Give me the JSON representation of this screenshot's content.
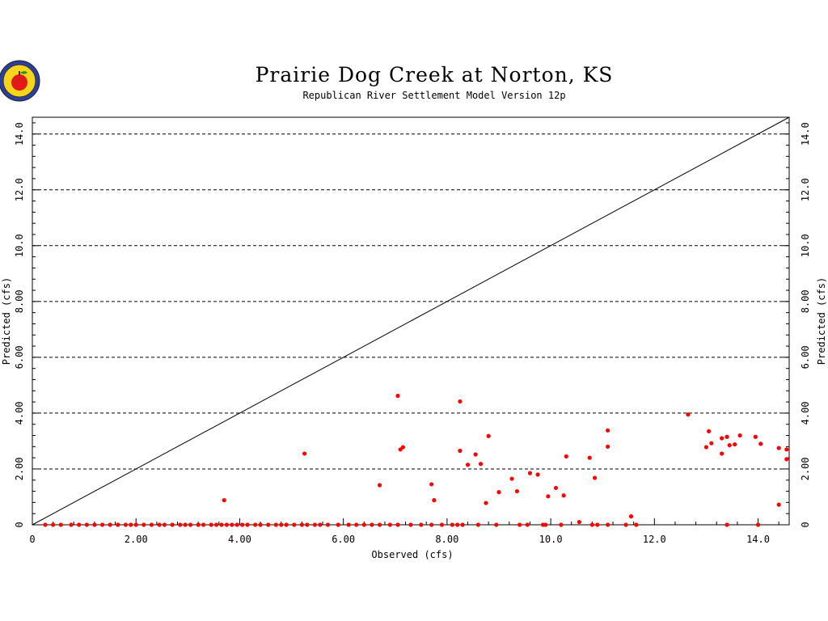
{
  "chart_data": {
    "type": "scatter",
    "title": "Prairie Dog Creek at Norton, KS",
    "subtitle": "Republican River Settlement Model Version 12p",
    "xlabel": "Observed (cfs)",
    "ylabel": "Predicted (cfs)",
    "xlim": [
      0,
      14.6
    ],
    "ylim": [
      0,
      14.6
    ],
    "x_ticks": [
      "0",
      "2.00",
      "4.00",
      "6.00",
      "8.00",
      "10.0",
      "12.0",
      "14.0"
    ],
    "y_ticks": [
      "0",
      "2.00",
      "4.00",
      "6.00",
      "8.00",
      "10.0",
      "12.0",
      "14.0"
    ],
    "grid": "horizontal-dashed",
    "reference_line": "1:1",
    "point_color": "#ff0000",
    "points": [
      [
        0.25,
        0
      ],
      [
        0.4,
        0
      ],
      [
        0.55,
        0
      ],
      [
        0.75,
        0
      ],
      [
        0.9,
        0
      ],
      [
        1.05,
        0
      ],
      [
        1.2,
        0
      ],
      [
        1.35,
        0
      ],
      [
        1.5,
        0
      ],
      [
        1.65,
        0
      ],
      [
        1.8,
        0
      ],
      [
        1.9,
        0
      ],
      [
        2.0,
        0
      ],
      [
        2.15,
        0
      ],
      [
        2.3,
        0
      ],
      [
        2.45,
        0
      ],
      [
        2.55,
        0
      ],
      [
        2.7,
        0
      ],
      [
        2.85,
        0
      ],
      [
        2.95,
        0
      ],
      [
        3.05,
        0
      ],
      [
        3.2,
        0
      ],
      [
        3.3,
        0
      ],
      [
        3.45,
        0
      ],
      [
        3.55,
        0
      ],
      [
        3.65,
        0
      ],
      [
        3.75,
        0
      ],
      [
        3.85,
        0
      ],
      [
        3.95,
        0
      ],
      [
        4.05,
        0
      ],
      [
        4.15,
        0
      ],
      [
        4.3,
        0
      ],
      [
        4.4,
        0
      ],
      [
        4.55,
        0
      ],
      [
        4.7,
        0
      ],
      [
        4.8,
        0
      ],
      [
        4.9,
        0
      ],
      [
        5.05,
        0
      ],
      [
        5.2,
        0
      ],
      [
        5.3,
        0
      ],
      [
        5.45,
        0
      ],
      [
        5.55,
        0
      ],
      [
        5.7,
        0
      ],
      [
        5.9,
        0
      ],
      [
        6.1,
        0
      ],
      [
        6.25,
        0
      ],
      [
        6.4,
        0
      ],
      [
        6.55,
        0
      ],
      [
        6.7,
        0
      ],
      [
        6.9,
        0
      ],
      [
        7.05,
        0
      ],
      [
        7.3,
        0
      ],
      [
        7.5,
        0
      ],
      [
        7.7,
        0
      ],
      [
        7.9,
        0
      ],
      [
        8.1,
        0
      ],
      [
        8.2,
        0
      ],
      [
        8.3,
        0
      ],
      [
        8.6,
        0
      ],
      [
        8.95,
        0
      ],
      [
        9.4,
        0
      ],
      [
        9.55,
        0
      ],
      [
        9.85,
        0
      ],
      [
        9.9,
        0
      ],
      [
        10.2,
        0
      ],
      [
        10.8,
        0
      ],
      [
        10.9,
        0
      ],
      [
        11.1,
        0
      ],
      [
        11.45,
        0
      ],
      [
        11.65,
        0
      ],
      [
        13.4,
        0
      ],
      [
        14.0,
        0
      ],
      [
        3.7,
        0.88
      ],
      [
        5.25,
        2.55
      ],
      [
        6.7,
        1.42
      ],
      [
        7.05,
        4.62
      ],
      [
        7.1,
        2.7
      ],
      [
        7.15,
        2.78
      ],
      [
        7.7,
        1.45
      ],
      [
        7.75,
        0.88
      ],
      [
        8.25,
        4.42
      ],
      [
        8.25,
        2.65
      ],
      [
        8.4,
        2.15
      ],
      [
        8.55,
        2.52
      ],
      [
        8.65,
        2.18
      ],
      [
        8.75,
        0.78
      ],
      [
        8.8,
        3.18
      ],
      [
        9.0,
        1.17
      ],
      [
        9.25,
        1.65
      ],
      [
        9.35,
        1.2
      ],
      [
        9.6,
        1.85
      ],
      [
        9.75,
        1.8
      ],
      [
        9.95,
        1.02
      ],
      [
        10.1,
        1.32
      ],
      [
        10.25,
        1.05
      ],
      [
        10.3,
        2.45
      ],
      [
        10.55,
        0.1
      ],
      [
        10.75,
        2.4
      ],
      [
        10.85,
        1.68
      ],
      [
        11.1,
        3.38
      ],
      [
        11.1,
        2.8
      ],
      [
        11.55,
        0.3
      ],
      [
        12.65,
        3.95
      ],
      [
        13.0,
        2.78
      ],
      [
        13.05,
        3.35
      ],
      [
        13.1,
        2.92
      ],
      [
        13.3,
        3.1
      ],
      [
        13.3,
        2.55
      ],
      [
        13.4,
        3.15
      ],
      [
        13.45,
        2.85
      ],
      [
        13.55,
        2.88
      ],
      [
        13.65,
        3.2
      ],
      [
        13.95,
        3.15
      ],
      [
        14.05,
        2.9
      ],
      [
        14.4,
        2.75
      ],
      [
        14.4,
        0.72
      ],
      [
        14.55,
        2.7
      ],
      [
        14.55,
        2.35
      ]
    ]
  },
  "logo": {
    "icon": "apple-seal-icon"
  }
}
